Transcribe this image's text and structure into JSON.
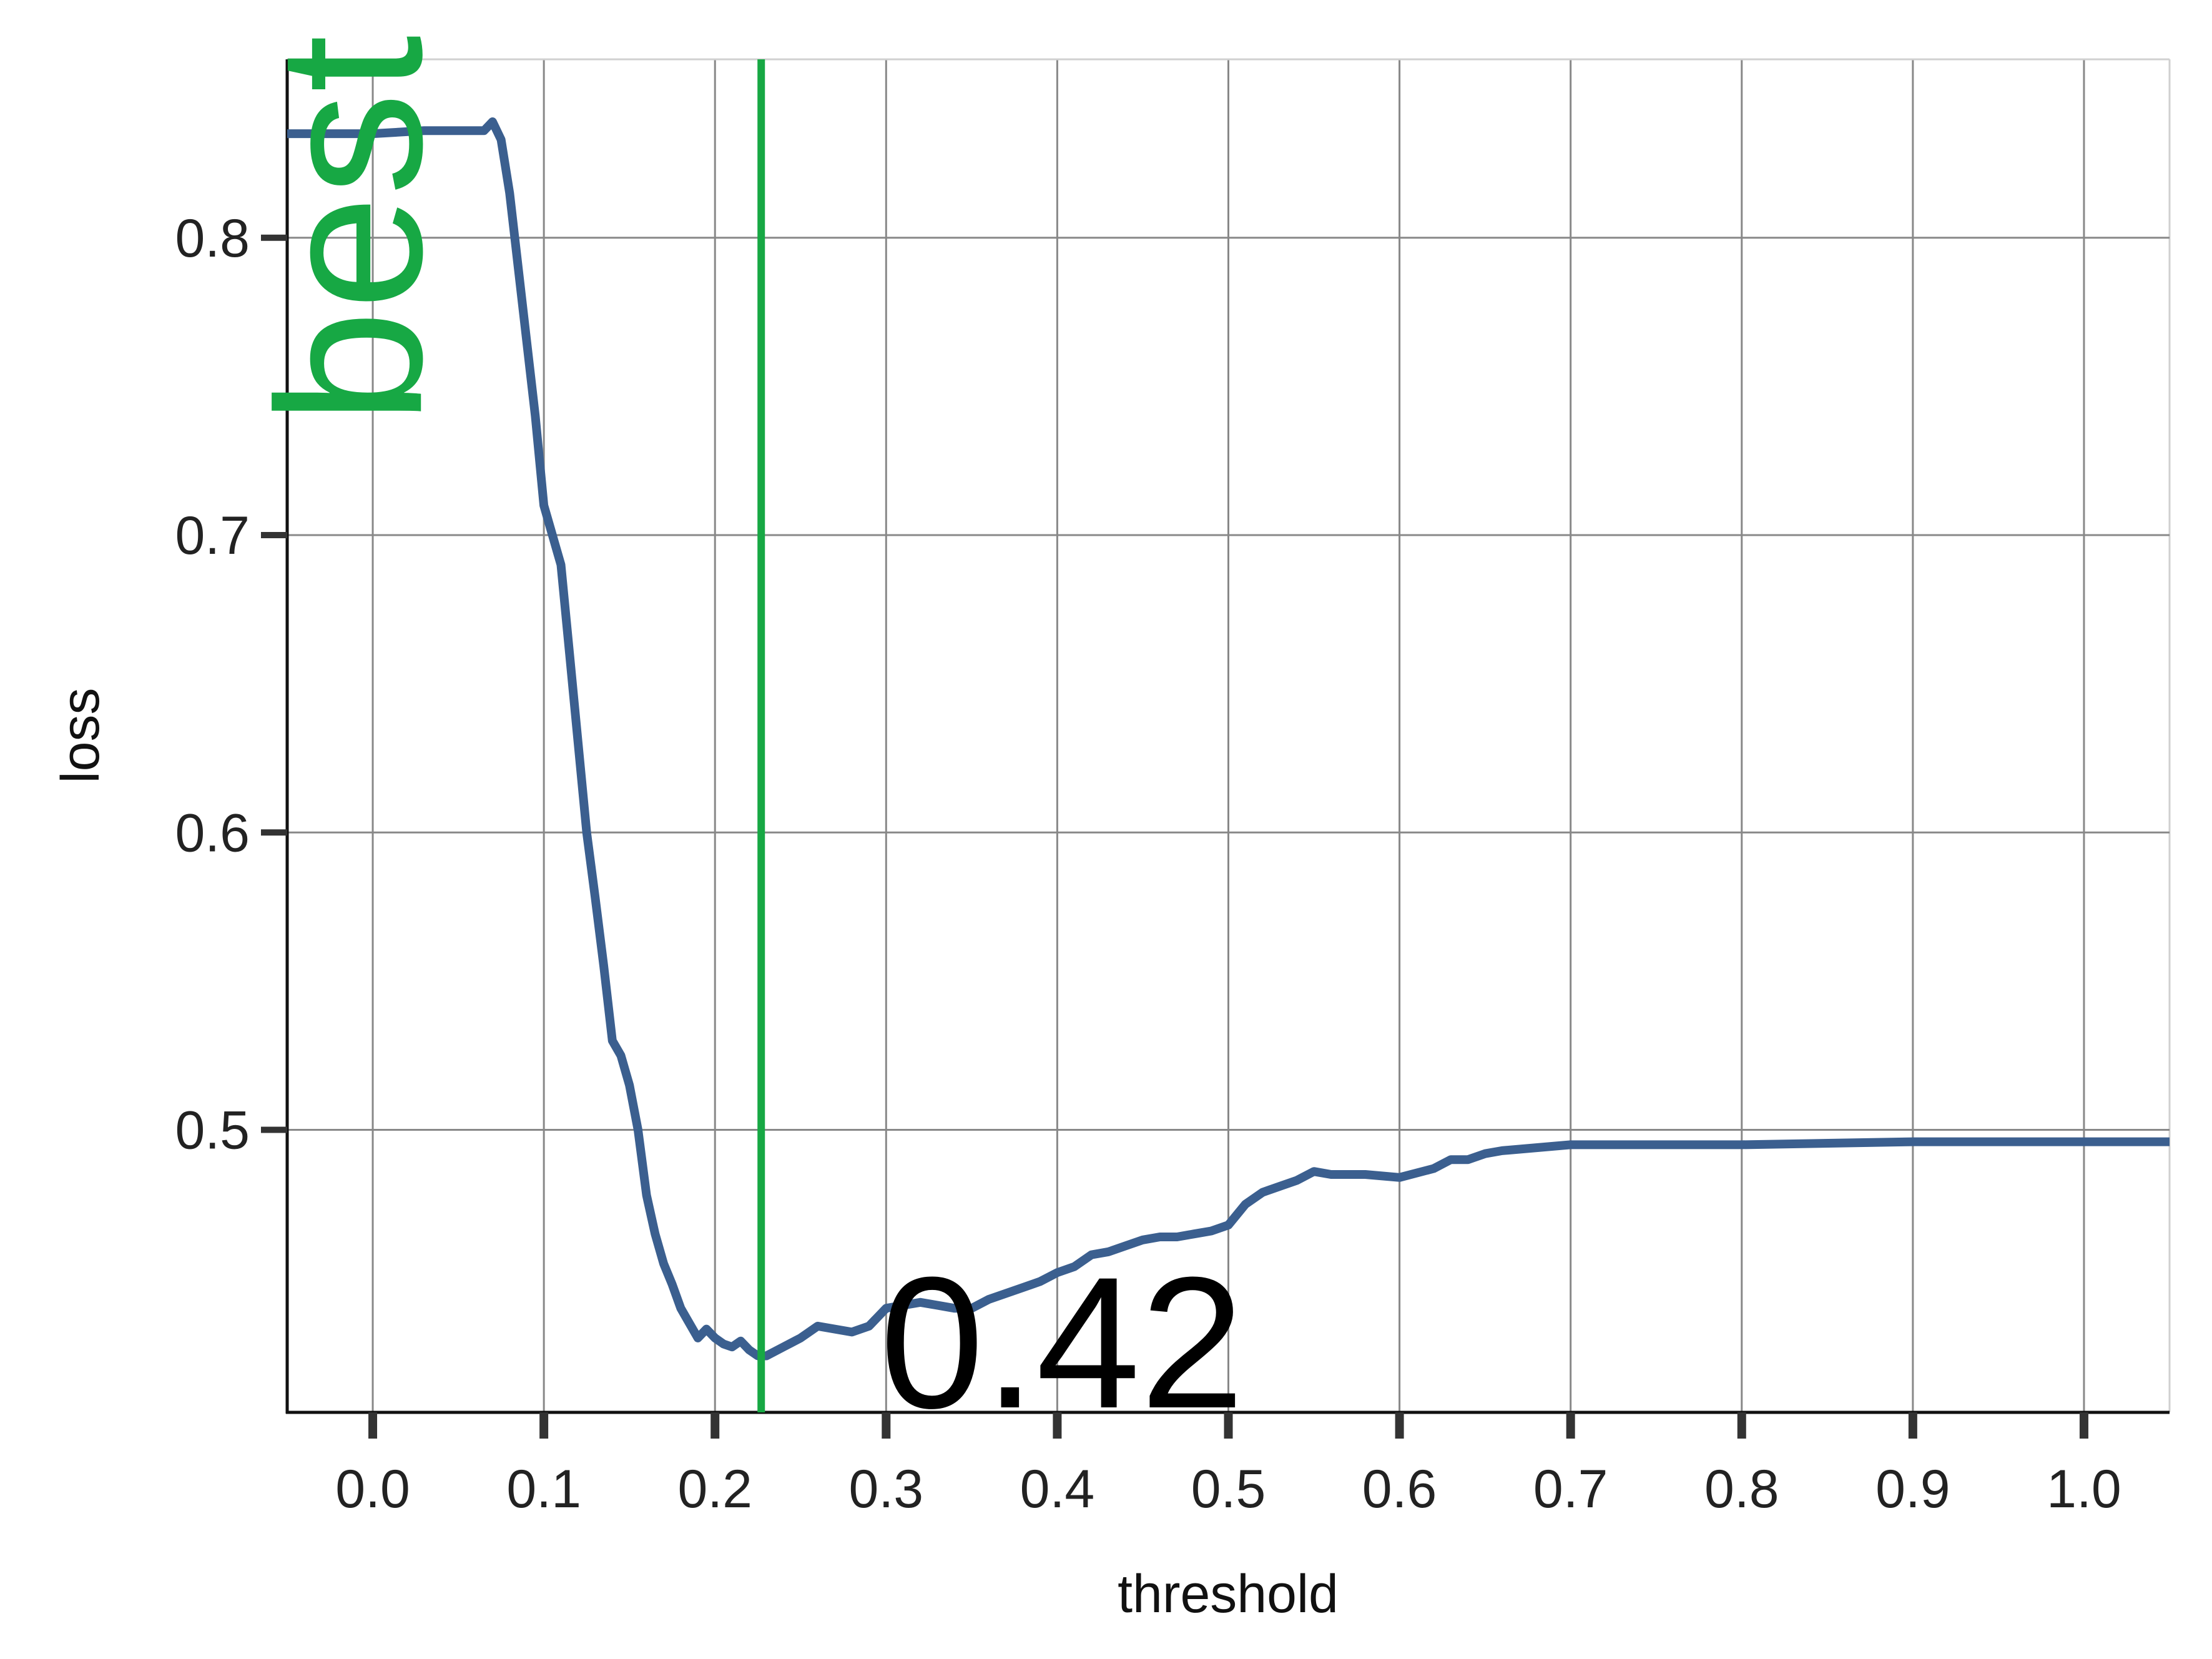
{
  "chart_data": {
    "type": "line",
    "title": "",
    "xlabel": "threshold",
    "ylabel": "loss",
    "xlim": [
      -0.05,
      1.05
    ],
    "ylim": [
      0.405,
      0.86
    ],
    "x_ticks": [
      0.0,
      0.1,
      0.2,
      0.3,
      0.4,
      0.5,
      0.6,
      0.7,
      0.8,
      0.9,
      1.0
    ],
    "x_tick_labels": [
      "0.0",
      "0.1",
      "0.2",
      "0.3",
      "0.4",
      "0.5",
      "0.6",
      "0.7",
      "0.8",
      "0.9",
      "1.0"
    ],
    "y_ticks": [
      0.5,
      0.6,
      0.7,
      0.8
    ],
    "y_tick_labels": [
      "0.5",
      "0.6",
      "0.7",
      "0.8"
    ],
    "grid": true,
    "legend": "none",
    "line_color": "#3b5f8f",
    "marker_color": "#17a844",
    "series": [
      {
        "x": [
          -0.05,
          0.0,
          0.03,
          0.06,
          0.065,
          0.07,
          0.075,
          0.08,
          0.085,
          0.09,
          0.095,
          0.1,
          0.105,
          0.11,
          0.115,
          0.12,
          0.125,
          0.13,
          0.135,
          0.14,
          0.145,
          0.15,
          0.155,
          0.16,
          0.165,
          0.17,
          0.175,
          0.18,
          0.185,
          0.19,
          0.195,
          0.2,
          0.205,
          0.21,
          0.215,
          0.22,
          0.225,
          0.23,
          0.24,
          0.25,
          0.26,
          0.27,
          0.28,
          0.29,
          0.3,
          0.31,
          0.32,
          0.33,
          0.34,
          0.35,
          0.36,
          0.37,
          0.38,
          0.39,
          0.4,
          0.41,
          0.42,
          0.43,
          0.44,
          0.45,
          0.46,
          0.47,
          0.48,
          0.49,
          0.5,
          0.51,
          0.52,
          0.53,
          0.54,
          0.55,
          0.56,
          0.58,
          0.6,
          0.62,
          0.63,
          0.64,
          0.65,
          0.66,
          0.7,
          0.8,
          0.9,
          1.0,
          1.05
        ],
        "y": [
          0.835,
          0.835,
          0.836,
          0.836,
          0.836,
          0.839,
          0.833,
          0.815,
          0.79,
          0.765,
          0.74,
          0.71,
          0.7,
          0.69,
          0.66,
          0.63,
          0.6,
          0.578,
          0.555,
          0.53,
          0.525,
          0.515,
          0.5,
          0.478,
          0.465,
          0.455,
          0.448,
          0.44,
          0.435,
          0.43,
          0.433,
          0.43,
          0.428,
          0.427,
          0.429,
          0.426,
          0.424,
          0.424,
          0.427,
          0.43,
          0.434,
          0.433,
          0.432,
          0.434,
          0.44,
          0.441,
          0.442,
          0.441,
          0.44,
          0.44,
          0.443,
          0.445,
          0.447,
          0.449,
          0.452,
          0.454,
          0.458,
          0.459,
          0.461,
          0.463,
          0.464,
          0.464,
          0.465,
          0.466,
          0.468,
          0.475,
          0.479,
          0.481,
          0.483,
          0.486,
          0.485,
          0.485,
          0.484,
          0.487,
          0.49,
          0.49,
          0.492,
          0.493,
          0.495,
          0.495,
          0.496,
          0.496,
          0.496
        ]
      }
    ],
    "vline": {
      "x": 0.227,
      "label": "best"
    },
    "annotation": {
      "text": "0.42",
      "x": 0.3,
      "y": 0.405
    }
  }
}
